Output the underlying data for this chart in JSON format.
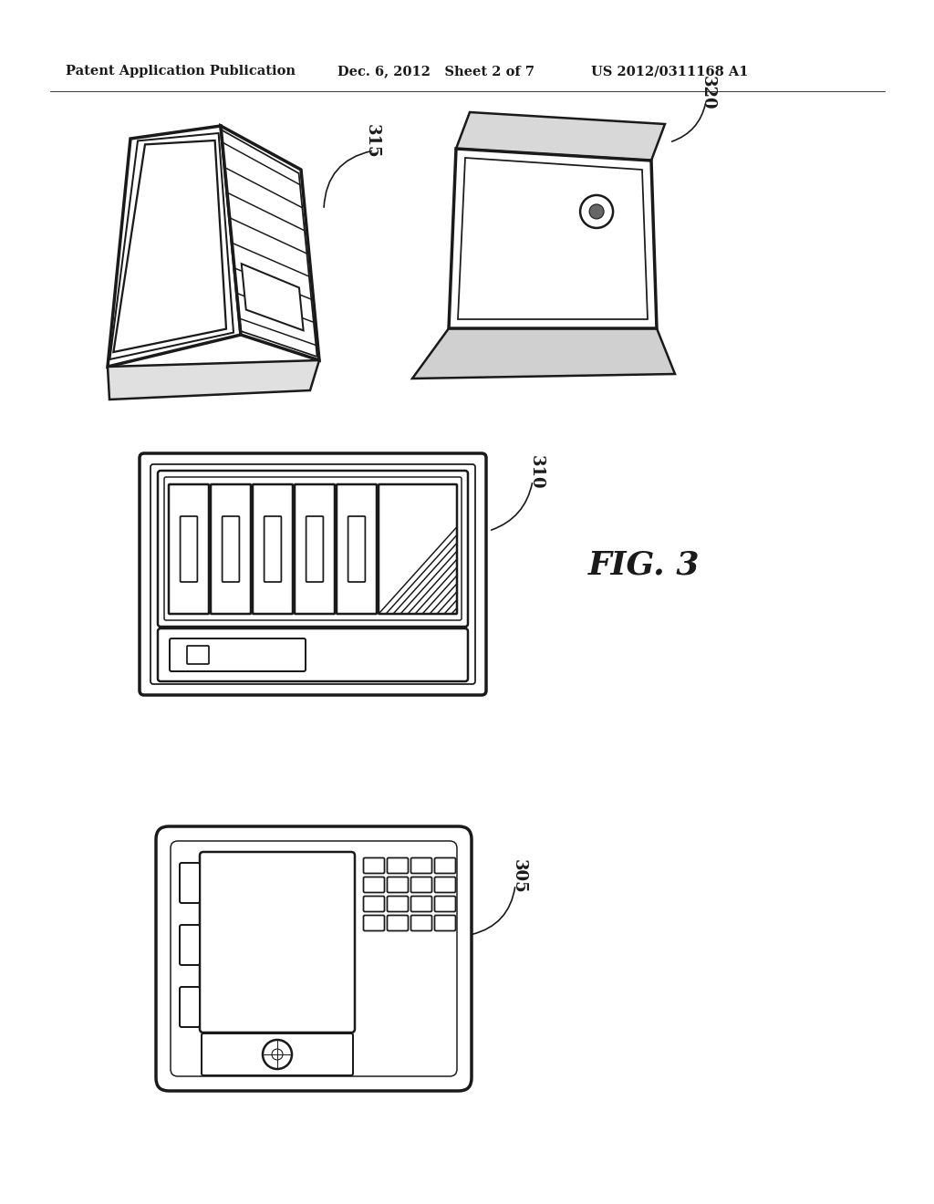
{
  "header_left": "Patent Application Publication",
  "header_mid": "Dec. 6, 2012   Sheet 2 of 7",
  "header_right": "US 2012/0311168 A1",
  "fig_label": "FIG. 3",
  "label_315": "315",
  "label_320": "320",
  "label_310": "310",
  "label_305": "305",
  "bg_color": "#ffffff",
  "line_color": "#1a1a1a",
  "line_width": 1.8,
  "thick_line": 2.5
}
